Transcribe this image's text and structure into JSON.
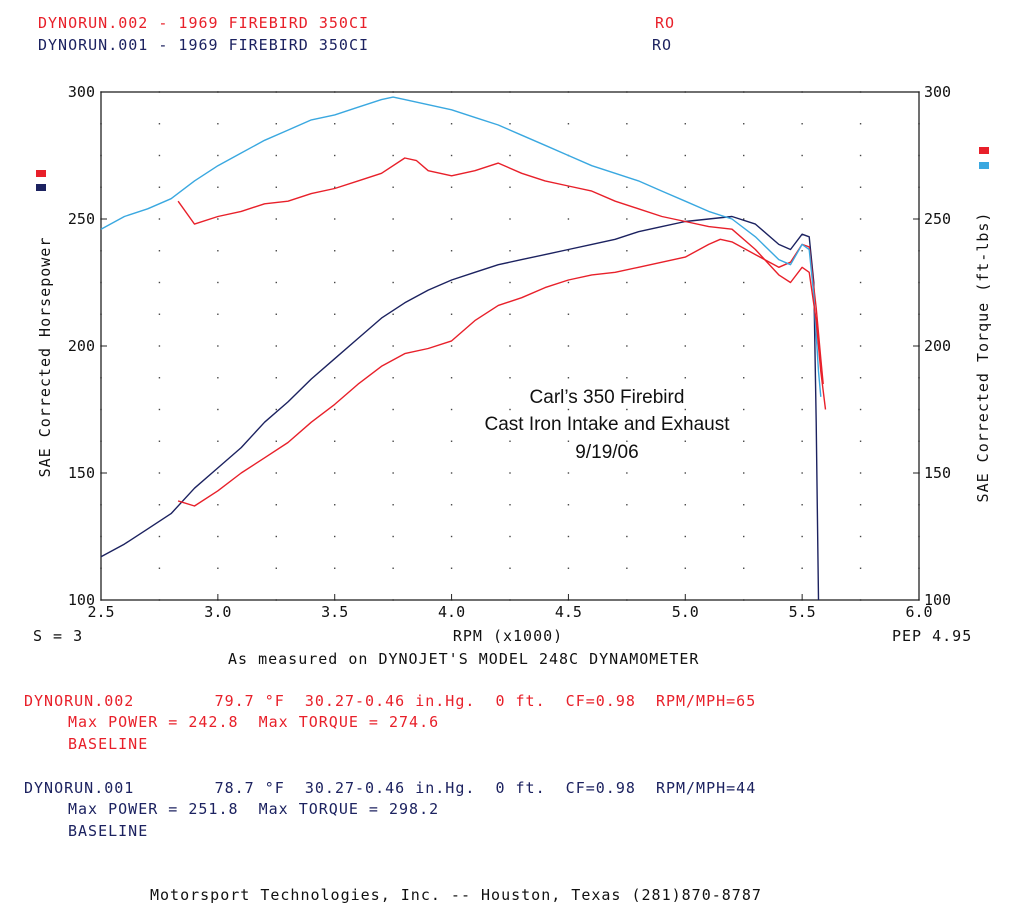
{
  "header": {
    "run2": {
      "label": "DYNORUN.002 - 1969 FIREBIRD 350CI",
      "code": "RO",
      "color": "#e8202a"
    },
    "run1": {
      "label": "DYNORUN.001 - 1969 FIREBIRD 350CI",
      "code": "RO",
      "color": "#1c2260"
    }
  },
  "chart_data": {
    "type": "line",
    "xlabel": "RPM (x1000)",
    "ylabel_left": "SAE Corrected Horsepower",
    "ylabel_right": "SAE Corrected Torque (ft-lbs)",
    "xlim": [
      2.5,
      6.0
    ],
    "ylim": [
      100,
      300
    ],
    "x_ticks": [
      "2.5",
      "3.0",
      "3.5",
      "4.0",
      "4.5",
      "5.0",
      "5.5",
      "6.0"
    ],
    "y_ticks_left": [
      "100",
      "150",
      "200",
      "250",
      "300"
    ],
    "y_ticks_right": [
      "100",
      "150",
      "200",
      "250",
      "300"
    ],
    "grid": "dotted",
    "legend_left": [
      {
        "run": "DYNORUN.002",
        "color": "#e8202a"
      },
      {
        "run": "DYNORUN.001",
        "color": "#1c2260"
      }
    ],
    "legend_right": [
      {
        "run": "DYNORUN.002",
        "color": "#e8202a"
      },
      {
        "run": "DYNORUN.001",
        "color": "#3aa8e0"
      }
    ],
    "smoothing_label": "S = 3",
    "pep_label": "PEP 4.95",
    "annotation": [
      "Carl’s 350 Firebird",
      "Cast Iron Intake and Exhaust",
      "9/19/06"
    ],
    "series": [
      {
        "name": "DYNORUN.001 Horsepower",
        "color": "#1c2260",
        "points": [
          [
            2.5,
            117
          ],
          [
            2.6,
            122
          ],
          [
            2.7,
            128
          ],
          [
            2.8,
            134
          ],
          [
            2.9,
            144
          ],
          [
            3.0,
            152
          ],
          [
            3.1,
            160
          ],
          [
            3.2,
            170
          ],
          [
            3.3,
            178
          ],
          [
            3.4,
            187
          ],
          [
            3.5,
            195
          ],
          [
            3.6,
            203
          ],
          [
            3.7,
            211
          ],
          [
            3.8,
            217
          ],
          [
            3.9,
            222
          ],
          [
            4.0,
            226
          ],
          [
            4.1,
            229
          ],
          [
            4.2,
            232
          ],
          [
            4.3,
            234
          ],
          [
            4.4,
            236
          ],
          [
            4.5,
            238
          ],
          [
            4.6,
            240
          ],
          [
            4.7,
            242
          ],
          [
            4.8,
            245
          ],
          [
            4.9,
            247
          ],
          [
            5.0,
            249
          ],
          [
            5.1,
            250
          ],
          [
            5.2,
            251
          ],
          [
            5.3,
            248
          ],
          [
            5.4,
            240
          ],
          [
            5.45,
            238
          ],
          [
            5.5,
            244
          ],
          [
            5.53,
            243
          ],
          [
            5.55,
            225
          ],
          [
            5.56,
            170
          ],
          [
            5.57,
            100
          ]
        ]
      },
      {
        "name": "DYNORUN.002 Horsepower",
        "color": "#e8202a",
        "points": [
          [
            2.83,
            139
          ],
          [
            2.9,
            137
          ],
          [
            3.0,
            143
          ],
          [
            3.1,
            150
          ],
          [
            3.2,
            156
          ],
          [
            3.3,
            162
          ],
          [
            3.4,
            170
          ],
          [
            3.5,
            177
          ],
          [
            3.6,
            185
          ],
          [
            3.7,
            192
          ],
          [
            3.8,
            197
          ],
          [
            3.9,
            199
          ],
          [
            4.0,
            202
          ],
          [
            4.1,
            210
          ],
          [
            4.2,
            216
          ],
          [
            4.3,
            219
          ],
          [
            4.4,
            223
          ],
          [
            4.5,
            226
          ],
          [
            4.6,
            228
          ],
          [
            4.7,
            229
          ],
          [
            4.8,
            231
          ],
          [
            4.9,
            233
          ],
          [
            5.0,
            235
          ],
          [
            5.1,
            240
          ],
          [
            5.15,
            242
          ],
          [
            5.2,
            241
          ],
          [
            5.3,
            236
          ],
          [
            5.4,
            231
          ],
          [
            5.45,
            233
          ],
          [
            5.5,
            240
          ],
          [
            5.53,
            239
          ],
          [
            5.56,
            215
          ],
          [
            5.58,
            195
          ],
          [
            5.59,
            185
          ]
        ]
      },
      {
        "name": "DYNORUN.001 Torque",
        "color": "#3aa8e0",
        "points": [
          [
            2.5,
            246
          ],
          [
            2.6,
            251
          ],
          [
            2.7,
            254
          ],
          [
            2.8,
            258
          ],
          [
            2.9,
            265
          ],
          [
            3.0,
            271
          ],
          [
            3.1,
            276
          ],
          [
            3.2,
            281
          ],
          [
            3.3,
            285
          ],
          [
            3.4,
            289
          ],
          [
            3.5,
            291
          ],
          [
            3.6,
            294
          ],
          [
            3.7,
            297
          ],
          [
            3.75,
            298
          ],
          [
            3.8,
            297
          ],
          [
            3.9,
            295
          ],
          [
            4.0,
            293
          ],
          [
            4.1,
            290
          ],
          [
            4.2,
            287
          ],
          [
            4.3,
            283
          ],
          [
            4.4,
            279
          ],
          [
            4.5,
            275
          ],
          [
            4.6,
            271
          ],
          [
            4.7,
            268
          ],
          [
            4.8,
            265
          ],
          [
            4.9,
            261
          ],
          [
            5.0,
            257
          ],
          [
            5.1,
            253
          ],
          [
            5.2,
            250
          ],
          [
            5.3,
            243
          ],
          [
            5.4,
            234
          ],
          [
            5.45,
            232
          ],
          [
            5.5,
            240
          ],
          [
            5.53,
            238
          ],
          [
            5.55,
            220
          ],
          [
            5.57,
            190
          ],
          [
            5.58,
            180
          ]
        ]
      },
      {
        "name": "DYNORUN.002 Torque",
        "color": "#e8202a",
        "points": [
          [
            2.83,
            257
          ],
          [
            2.9,
            248
          ],
          [
            3.0,
            251
          ],
          [
            3.1,
            253
          ],
          [
            3.2,
            256
          ],
          [
            3.3,
            257
          ],
          [
            3.4,
            260
          ],
          [
            3.5,
            262
          ],
          [
            3.6,
            265
          ],
          [
            3.7,
            268
          ],
          [
            3.8,
            274
          ],
          [
            3.85,
            273
          ],
          [
            3.9,
            269
          ],
          [
            4.0,
            267
          ],
          [
            4.1,
            269
          ],
          [
            4.2,
            272
          ],
          [
            4.3,
            268
          ],
          [
            4.4,
            265
          ],
          [
            4.5,
            263
          ],
          [
            4.6,
            261
          ],
          [
            4.7,
            257
          ],
          [
            4.8,
            254
          ],
          [
            4.9,
            251
          ],
          [
            5.0,
            249
          ],
          [
            5.1,
            247
          ],
          [
            5.2,
            246
          ],
          [
            5.3,
            238
          ],
          [
            5.4,
            228
          ],
          [
            5.45,
            225
          ],
          [
            5.5,
            231
          ],
          [
            5.53,
            229
          ],
          [
            5.56,
            210
          ],
          [
            5.58,
            190
          ],
          [
            5.6,
            175
          ]
        ]
      }
    ]
  },
  "footer": {
    "measured_note": "As measured on DYNOJET'S MODEL 248C DYNAMOMETER",
    "run2": {
      "line1": "DYNORUN.002        79.7 °F  30.27-0.46 in.Hg.  0 ft.  CF=0.98  RPM/MPH=65",
      "line2": "Max POWER = 242.8  Max TORQUE = 274.6",
      "line3": "BASELINE"
    },
    "run1": {
      "line1": "DYNORUN.001        78.7 °F  30.27-0.46 in.Hg.  0 ft.  CF=0.98  RPM/MPH=44",
      "line2": "Max POWER = 251.8  Max TORQUE = 298.2",
      "line3": "BASELINE"
    },
    "company": "Motorsport Technologies, Inc. -- Houston, Texas (281)870-8787"
  }
}
